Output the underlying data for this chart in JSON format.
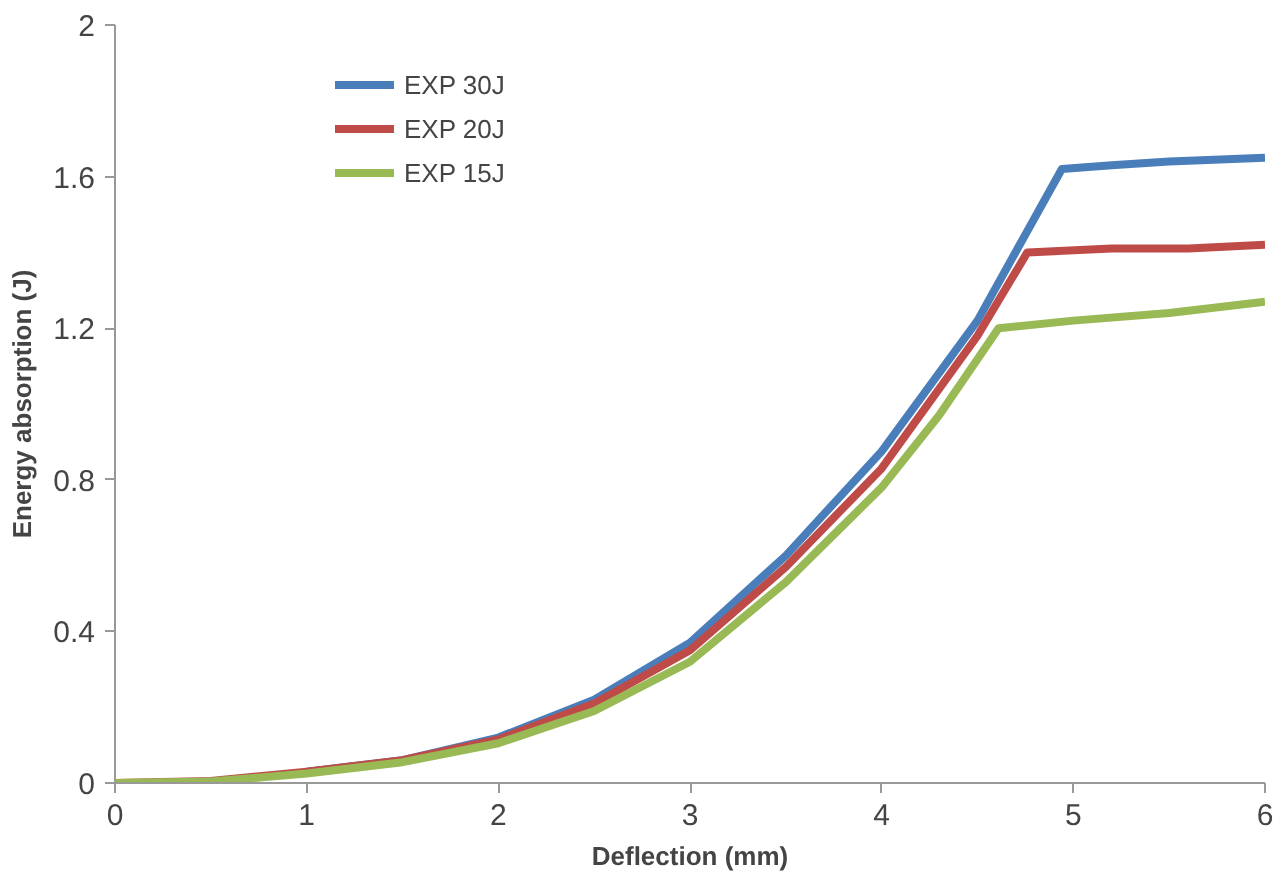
{
  "chart_data": {
    "type": "line",
    "xlabel": "Deflection (mm)",
    "ylabel": "Energy absorption (J)",
    "xlim": [
      0,
      6
    ],
    "xticks": [
      0,
      1,
      2,
      3,
      4,
      5,
      6
    ],
    "ylim": [
      0,
      2
    ],
    "yticks": [
      0,
      0.4,
      0.8,
      1.2,
      1.6,
      2
    ],
    "grid": false,
    "legend": "top left",
    "line_style": "solid",
    "series": [
      {
        "name": "EXP 30J",
        "color": "#4a7ebb",
        "x": [
          1,
          1.5,
          2,
          2.5,
          3,
          3.5,
          4,
          4.5,
          4.94,
          5.2,
          5.5,
          6
        ],
        "values": [
          0.03,
          0.06,
          0.12,
          0.22,
          0.37,
          0.6,
          0.875,
          1.22,
          1.62,
          1.63,
          1.64,
          1.65
        ]
      },
      {
        "name": "EXP 20J",
        "color": "#be4b48",
        "x": [
          0,
          0.5,
          1,
          1.5,
          2,
          2.5,
          3,
          3.5,
          4,
          4.5,
          4.76,
          5.2,
          5.6,
          6
        ],
        "values": [
          0,
          0.005,
          0.03,
          0.06,
          0.115,
          0.21,
          0.35,
          0.57,
          0.83,
          1.18,
          1.4,
          1.41,
          1.41,
          1.42
        ]
      },
      {
        "name": "EXP 15J",
        "color": "#98b954",
        "x": [
          0,
          0.5,
          1,
          1.5,
          2,
          2.5,
          3,
          3.5,
          4,
          4.3,
          4.61,
          5,
          5.5,
          6
        ],
        "values": [
          0,
          0.004,
          0.025,
          0.055,
          0.105,
          0.19,
          0.32,
          0.53,
          0.78,
          0.97,
          1.2,
          1.22,
          1.24,
          1.27
        ]
      }
    ]
  }
}
